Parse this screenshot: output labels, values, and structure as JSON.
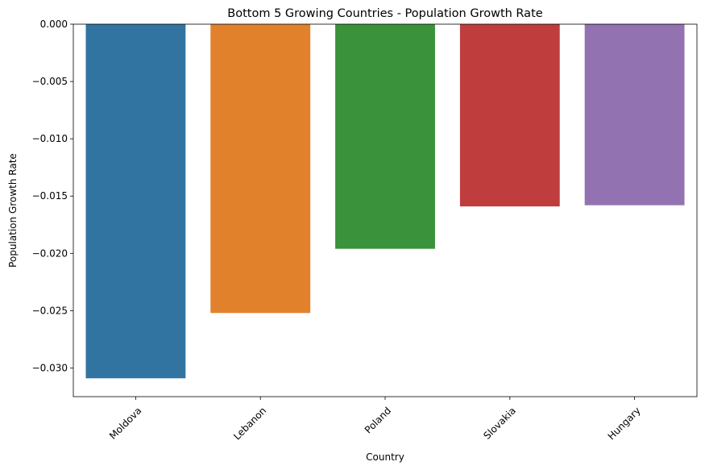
{
  "chart_data": {
    "type": "bar",
    "title": "Bottom 5 Growing Countries - Population Growth Rate",
    "xlabel": "Country",
    "ylabel": "Population Growth Rate",
    "categories": [
      "Moldova",
      "Lebanon",
      "Poland",
      "Slovakia",
      "Hungary"
    ],
    "values": [
      -0.0309,
      -0.0252,
      -0.0196,
      -0.0159,
      -0.0158
    ],
    "colors": [
      "#3274a1",
      "#e1812c",
      "#3a923a",
      "#c03d3e",
      "#9372b2"
    ],
    "ylim": [
      -0.0325,
      0.0
    ],
    "yticks": [
      0.0,
      -0.005,
      -0.01,
      -0.015,
      -0.02,
      -0.025,
      -0.03
    ],
    "ytick_labels": [
      "0.000",
      "−0.005",
      "−0.010",
      "−0.015",
      "−0.020",
      "−0.025",
      "−0.030"
    ],
    "grid": false,
    "legend": "none",
    "xtick_rotation_deg": 45
  }
}
